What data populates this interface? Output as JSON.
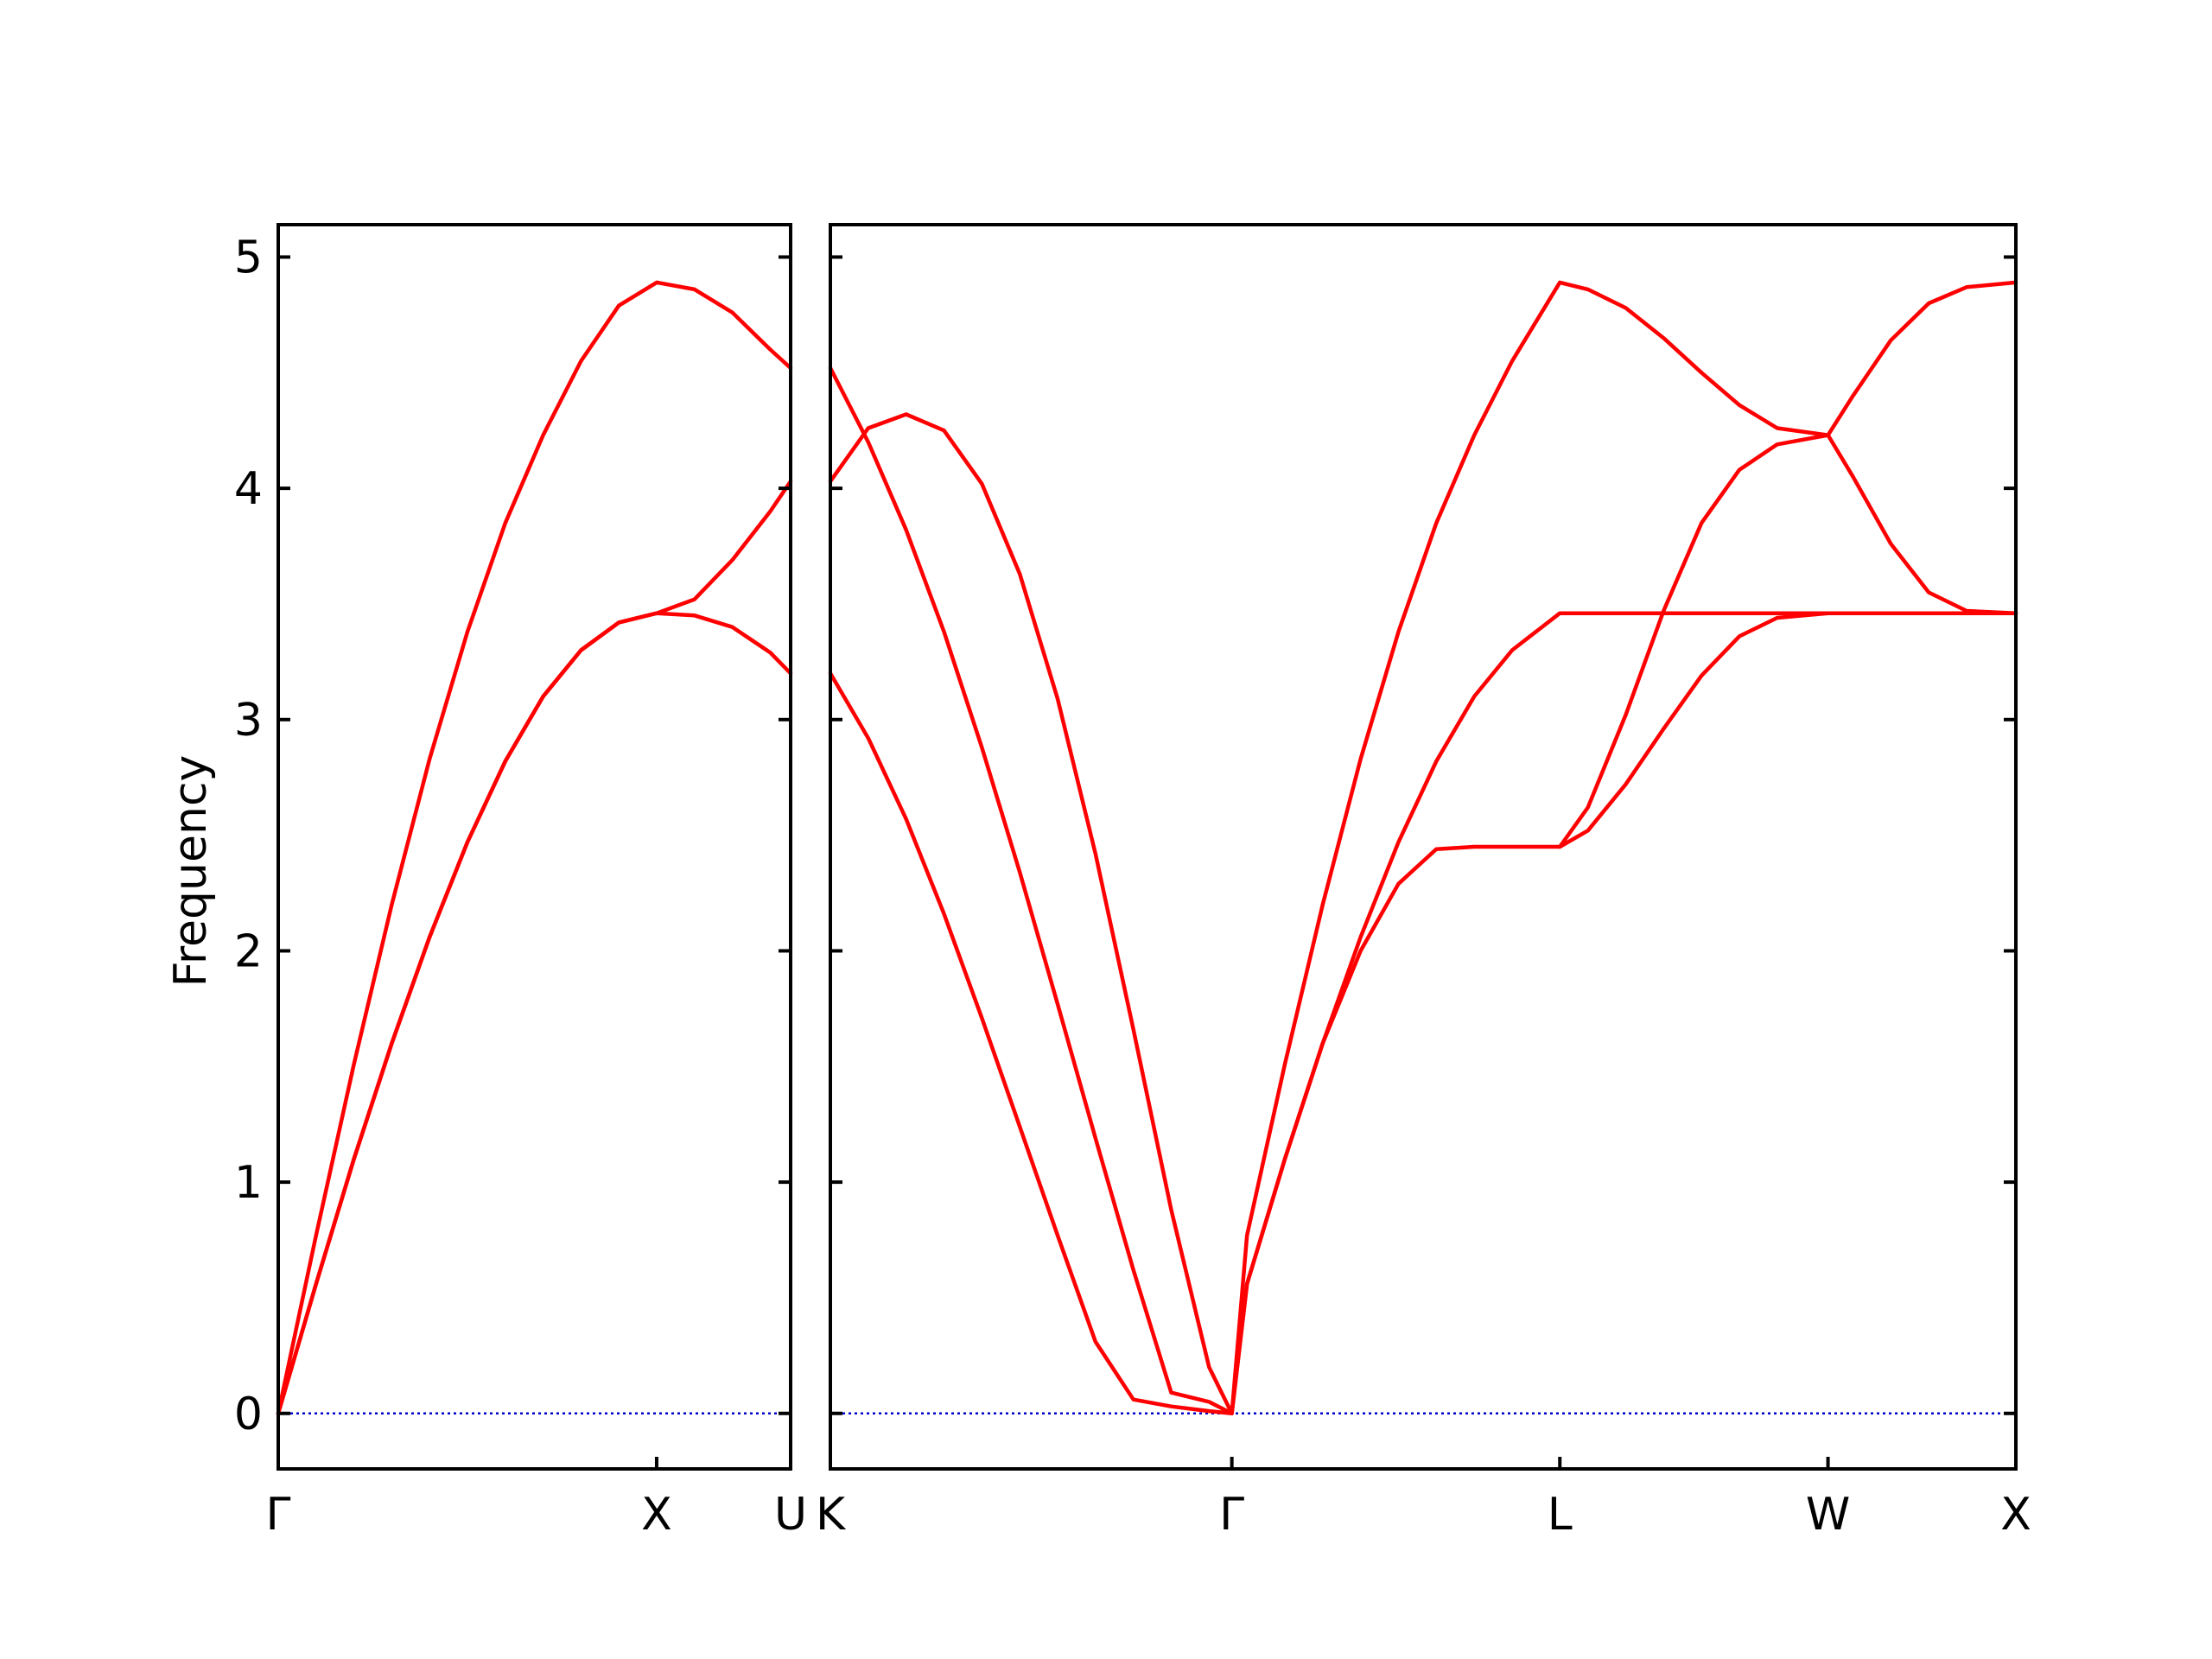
{
  "chart_data": {
    "type": "line",
    "title": "",
    "ylabel": "Frequency",
    "ylim": [
      -0.24,
      5.14
    ],
    "yticks": [
      0,
      1,
      2,
      3,
      4,
      5
    ],
    "grid": false,
    "colors": {
      "band": "#ff0000",
      "zero": "#0000cc",
      "axes": "#000000"
    },
    "panels": [
      {
        "name": "left",
        "xlim": [
          0,
          1.354
        ],
        "ticks": [
          {
            "x": 0,
            "label": "Γ"
          },
          {
            "x": 1.0,
            "label": "X"
          },
          {
            "x": 1.354,
            "label": "U"
          }
        ],
        "series": [
          {
            "x": [
              0,
              0.1,
              0.2,
              0.3,
              0.4,
              0.5,
              0.6,
              0.7,
              0.8,
              0.9,
              1.0,
              1.1,
              1.2,
              1.3,
              1.354
            ],
            "y": [
              0,
              0.77,
              1.51,
              2.2,
              2.83,
              3.38,
              3.85,
              4.23,
              4.55,
              4.79,
              4.89,
              4.86,
              4.76,
              4.6,
              4.52
            ]
          },
          {
            "x": [
              0,
              0.1,
              0.2,
              0.3,
              0.4,
              0.5,
              0.6,
              0.7,
              0.8,
              0.9,
              1.0,
              1.1,
              1.2,
              1.3,
              1.354
            ],
            "y": [
              0,
              0.56,
              1.1,
              1.6,
              2.06,
              2.47,
              2.82,
              3.1,
              3.3,
              3.42,
              3.46,
              3.45,
              3.4,
              3.29,
              3.2
            ]
          },
          {
            "x": [
              0,
              0.1,
              0.2,
              0.3,
              0.4,
              0.5,
              0.6,
              0.7,
              0.8,
              0.9,
              1.0,
              1.1,
              1.2,
              1.3,
              1.354
            ],
            "y": [
              0,
              0.56,
              1.1,
              1.6,
              2.06,
              2.47,
              2.82,
              3.1,
              3.3,
              3.42,
              3.46,
              3.52,
              3.69,
              3.9,
              4.03
            ]
          }
        ]
      },
      {
        "name": "right",
        "xlim": [
          0,
          3.13
        ],
        "ticks": [
          {
            "x": 0,
            "label": "K"
          },
          {
            "x": 1.06,
            "label": "Γ"
          },
          {
            "x": 1.926,
            "label": "L"
          },
          {
            "x": 2.634,
            "label": "W"
          },
          {
            "x": 3.13,
            "label": "X"
          }
        ],
        "series": [
          {
            "x": [
              0,
              0.1,
              0.2,
              0.3,
              0.4,
              0.5,
              0.6,
              0.7,
              0.8,
              0.9,
              1.0,
              1.06,
              1.1,
              1.2,
              1.3,
              1.4,
              1.5,
              1.6,
              1.7,
              1.8,
              1.926,
              2.0,
              2.1,
              2.2,
              2.3,
              2.4,
              2.5,
              2.634,
              2.7,
              2.8,
              2.9,
              3.0,
              3.13
            ],
            "y": [
              4.03,
              4.26,
              4.32,
              4.25,
              4.02,
              3.63,
              3.09,
              2.42,
              1.66,
              0.88,
              0.2,
              0,
              0.56,
              1.1,
              1.6,
              2.06,
              2.47,
              2.82,
              3.1,
              3.3,
              3.46,
              3.46,
              3.46,
              3.46,
              3.46,
              3.46,
              3.46,
              3.46,
              3.46,
              3.46,
              3.46,
              3.46,
              3.46
            ]
          },
          {
            "x": [
              0,
              0.1,
              0.2,
              0.3,
              0.4,
              0.5,
              0.6,
              0.7,
              0.8,
              0.9,
              1.0,
              1.06,
              1.1,
              1.2,
              1.3,
              1.4,
              1.5,
              1.6,
              1.7,
              1.8,
              1.926,
              2.0,
              2.1,
              2.2,
              2.3,
              2.4,
              2.5,
              2.634,
              2.7,
              2.8,
              2.9,
              3.0,
              3.13
            ],
            "y": [
              4.52,
              4.2,
              3.82,
              3.38,
              2.88,
              2.34,
              1.77,
              1.19,
              0.62,
              0.09,
              0.05,
              0,
              0.77,
              1.51,
              2.2,
              2.83,
              3.38,
              3.85,
              4.23,
              4.55,
              4.89,
              4.86,
              4.78,
              4.65,
              4.5,
              4.36,
              4.26,
              4.23,
              4.05,
              3.76,
              3.55,
              3.47,
              3.46
            ]
          },
          {
            "x": [
              0,
              0.1,
              0.2,
              0.3,
              0.4,
              0.5,
              0.6,
              0.7,
              0.8,
              0.9,
              1.0,
              1.06,
              1.1,
              1.2,
              1.3,
              1.4,
              1.5,
              1.6,
              1.7,
              1.8,
              1.926,
              2.0,
              2.1,
              2.2,
              2.3,
              2.4,
              2.5,
              2.634,
              2.7,
              2.8,
              2.9,
              3.0,
              3.13
            ],
            "y": [
              3.2,
              2.92,
              2.57,
              2.16,
              1.71,
              1.24,
              0.77,
              0.31,
              0.06,
              0.03,
              0.01,
              0,
              0.56,
              1.1,
              1.6,
              2.0,
              2.29,
              2.44,
              2.45,
              2.45,
              2.45,
              2.52,
              2.72,
              2.96,
              3.19,
              3.36,
              3.44,
              3.46,
              3.46,
              3.46,
              3.46,
              3.46,
              3.46
            ]
          },
          {
            "x": [
              1.926,
              2.0,
              2.1,
              2.2,
              2.3,
              2.4,
              2.5,
              2.634,
              2.7,
              2.8,
              2.9,
              3.0,
              3.13
            ],
            "y": [
              2.45,
              2.62,
              3.02,
              3.47,
              3.85,
              4.08,
              4.19,
              4.23,
              4.4,
              4.64,
              4.8,
              4.87,
              4.89
            ]
          }
        ]
      }
    ]
  }
}
